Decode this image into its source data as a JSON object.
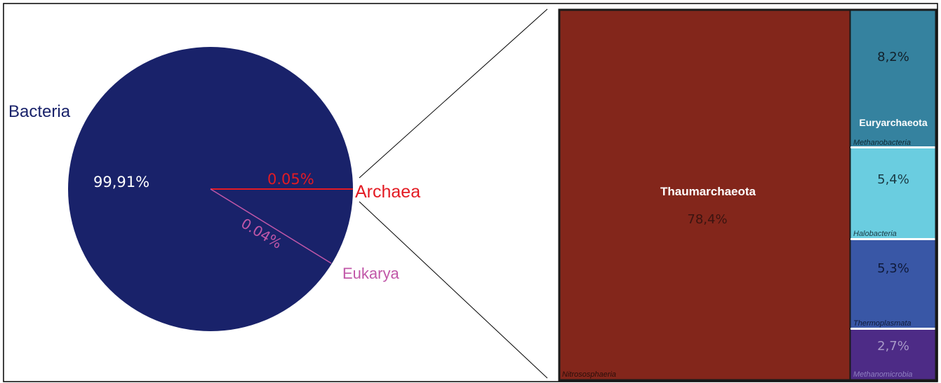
{
  "colors": {
    "bacteria": "#19226a",
    "archaea": "#e31b23",
    "eukarya": "#c157a8",
    "thaumarchaeota": "#83261b",
    "methanobacteria": "#35829f",
    "halobacteria": "#6acde0",
    "thermoplasmata": "#3957a6",
    "methanomicrobia": "#4d2b86"
  },
  "chart_data": [
    {
      "type": "pie",
      "slices": [
        {
          "name": "Bacteria",
          "value": 99.91,
          "label": "99,91%"
        },
        {
          "name": "Archaea",
          "value": 0.05,
          "label": "0.05%"
        },
        {
          "name": "Eukarya",
          "value": 0.04,
          "label": "0.04%"
        }
      ]
    },
    {
      "type": "treemap",
      "phyla": [
        {
          "name": "Thaumarchaeota",
          "cells": [
            {
              "class": "Nitrososphaeria",
              "value": 78.4,
              "label": "78,4%"
            }
          ]
        },
        {
          "name": "Euryarchaeota",
          "cells": [
            {
              "class": "Methanobacteria",
              "value": 8.2,
              "label": "8,2%"
            },
            {
              "class": "Halobacteria",
              "value": 5.4,
              "label": "5,4%"
            },
            {
              "class": "Thermoplasmata",
              "value": 5.3,
              "label": "5,3%"
            },
            {
              "class": "Methanomicrobia",
              "value": 2.7,
              "label": "2,7%"
            }
          ]
        }
      ]
    }
  ]
}
